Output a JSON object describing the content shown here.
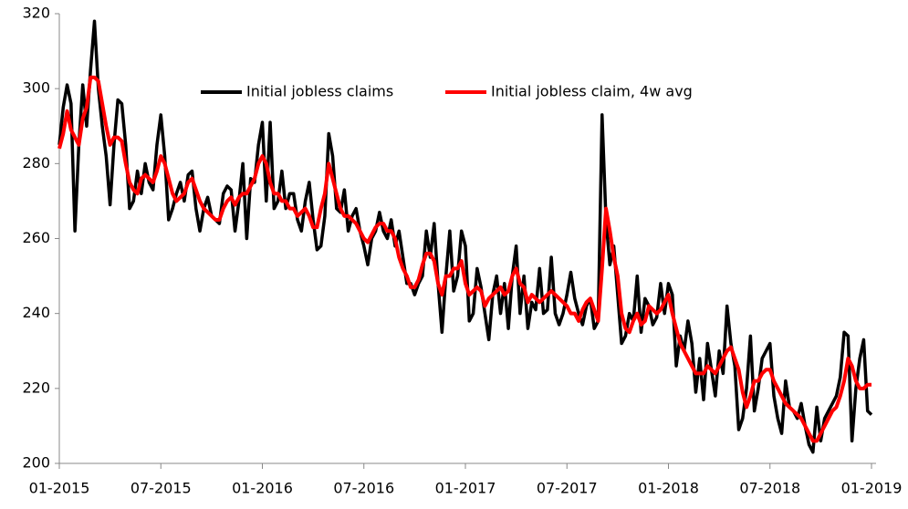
{
  "chart_data": {
    "type": "line",
    "categories": [
      "01-2015",
      null,
      null,
      null,
      null,
      null,
      null,
      null,
      null,
      null,
      null,
      null,
      null,
      null,
      null,
      null,
      null,
      null,
      null,
      null,
      null,
      null,
      null,
      null,
      null,
      null,
      "07-2015",
      null,
      null,
      null,
      null,
      null,
      null,
      null,
      null,
      null,
      null,
      null,
      null,
      null,
      null,
      null,
      null,
      null,
      null,
      null,
      null,
      null,
      null,
      null,
      null,
      null,
      "01-2016",
      null,
      null,
      null,
      null,
      null,
      null,
      null,
      null,
      null,
      null,
      null,
      null,
      null,
      null,
      null,
      null,
      null,
      null,
      null,
      null,
      null,
      null,
      null,
      null,
      null,
      "07-2016",
      null,
      null,
      null,
      null,
      null,
      null,
      null,
      null,
      null,
      null,
      null,
      null,
      null,
      null,
      null,
      null,
      null,
      null,
      null,
      null,
      null,
      null,
      null,
      null,
      null,
      "01-2017",
      null,
      null,
      null,
      null,
      null,
      null,
      null,
      null,
      null,
      null,
      null,
      null,
      null,
      null,
      null,
      null,
      null,
      null,
      null,
      null,
      null,
      null,
      null,
      null,
      null,
      "07-2017",
      null,
      null,
      null,
      null,
      null,
      null,
      null,
      null,
      null,
      null,
      null,
      null,
      null,
      null,
      null,
      null,
      null,
      null,
      null,
      null,
      null,
      null,
      null,
      null,
      null,
      "01-2018",
      null,
      null,
      null,
      null,
      null,
      null,
      null,
      null,
      null,
      null,
      null,
      null,
      null,
      null,
      null,
      null,
      null,
      null,
      null,
      null,
      null,
      null,
      null,
      null,
      null,
      "07-2018",
      null,
      null,
      null,
      null,
      null,
      null,
      null,
      null,
      null,
      null,
      null,
      null,
      null,
      null,
      null,
      null,
      null,
      null,
      null,
      null,
      null,
      null,
      null,
      null,
      null,
      "01-2019"
    ],
    "series": [
      {
        "name": "Initial jobless claims",
        "color": "#000000",
        "values": [
          285,
          295,
          301,
          296,
          262,
          285,
          301,
          290,
          305,
          318,
          300,
          290,
          282,
          269,
          285,
          297,
          296,
          285,
          268,
          270,
          278,
          272,
          280,
          275,
          273,
          285,
          293,
          282,
          265,
          268,
          272,
          275,
          270,
          277,
          278,
          268,
          262,
          268,
          271,
          266,
          265,
          264,
          272,
          274,
          273,
          262,
          270,
          280,
          260,
          276,
          275,
          285,
          291,
          270,
          291,
          268,
          270,
          278,
          268,
          272,
          272,
          265,
          262,
          270,
          275,
          265,
          257,
          258,
          266,
          288,
          282,
          268,
          267,
          273,
          262,
          266,
          268,
          262,
          258,
          253,
          260,
          262,
          267,
          262,
          260,
          265,
          258,
          262,
          255,
          248,
          248,
          245,
          248,
          250,
          262,
          255,
          264,
          248,
          235,
          250,
          262,
          246,
          250,
          262,
          258,
          238,
          240,
          252,
          247,
          240,
          233,
          245,
          250,
          240,
          248,
          236,
          250,
          258,
          240,
          250,
          236,
          243,
          241,
          252,
          240,
          241,
          255,
          240,
          237,
          240,
          245,
          251,
          244,
          240,
          237,
          242,
          244,
          236,
          238,
          293,
          265,
          253,
          258,
          245,
          232,
          234,
          240,
          238,
          250,
          235,
          244,
          242,
          237,
          239,
          248,
          240,
          248,
          245,
          226,
          234,
          230,
          238,
          232,
          219,
          228,
          217,
          232,
          225,
          218,
          230,
          224,
          242,
          232,
          226,
          209,
          212,
          220,
          234,
          214,
          220,
          228,
          230,
          232,
          218,
          212,
          208,
          222,
          215,
          214,
          212,
          216,
          210,
          205,
          203,
          215,
          206,
          212,
          214,
          216,
          218,
          223,
          235,
          234,
          206,
          220,
          228,
          233,
          214,
          213
        ]
      },
      {
        "name": "Initial jobless claim, 4w avg",
        "color": "#ff0000",
        "values": [
          284,
          288,
          294,
          289,
          287,
          285,
          292,
          295,
          303,
          303,
          302,
          296,
          290,
          285,
          287,
          287,
          286,
          280,
          275,
          273,
          272,
          276,
          277,
          276,
          275,
          278,
          282,
          280,
          276,
          272,
          270,
          271,
          272,
          275,
          276,
          273,
          270,
          268,
          267,
          266,
          265,
          265,
          268,
          270,
          271,
          269,
          271,
          272,
          272,
          274,
          276,
          280,
          282,
          280,
          275,
          272,
          272,
          270,
          270,
          268,
          268,
          266,
          267,
          268,
          266,
          263,
          263,
          268,
          272,
          280,
          276,
          272,
          268,
          266,
          266,
          265,
          264,
          262,
          260,
          259,
          261,
          263,
          264,
          264,
          262,
          262,
          260,
          255,
          252,
          250,
          247,
          247,
          249,
          253,
          256,
          256,
          254,
          248,
          245,
          250,
          250,
          252,
          252,
          254,
          248,
          245,
          246,
          247,
          246,
          242,
          244,
          245,
          246,
          247,
          245,
          246,
          250,
          252,
          248,
          247,
          243,
          245,
          244,
          243,
          244,
          245,
          246,
          245,
          244,
          243,
          242,
          240,
          240,
          238,
          241,
          243,
          244,
          241,
          238,
          252,
          268,
          262,
          255,
          250,
          240,
          236,
          235,
          238,
          240,
          237,
          238,
          242,
          241,
          240,
          241,
          243,
          245,
          240,
          236,
          232,
          230,
          228,
          226,
          224,
          224,
          224,
          226,
          225,
          224,
          226,
          228,
          230,
          231,
          228,
          225,
          219,
          215,
          218,
          222,
          222,
          224,
          225,
          225,
          222,
          220,
          218,
          216,
          215,
          214,
          213,
          212,
          210,
          208,
          206,
          206,
          208,
          210,
          212,
          214,
          215,
          218,
          222,
          228,
          226,
          222,
          220,
          220,
          221,
          221
        ]
      }
    ],
    "ylim": [
      200,
      320
    ],
    "yticks": [
      200,
      220,
      240,
      260,
      280,
      300,
      320
    ],
    "grid": false,
    "legend": "top"
  }
}
